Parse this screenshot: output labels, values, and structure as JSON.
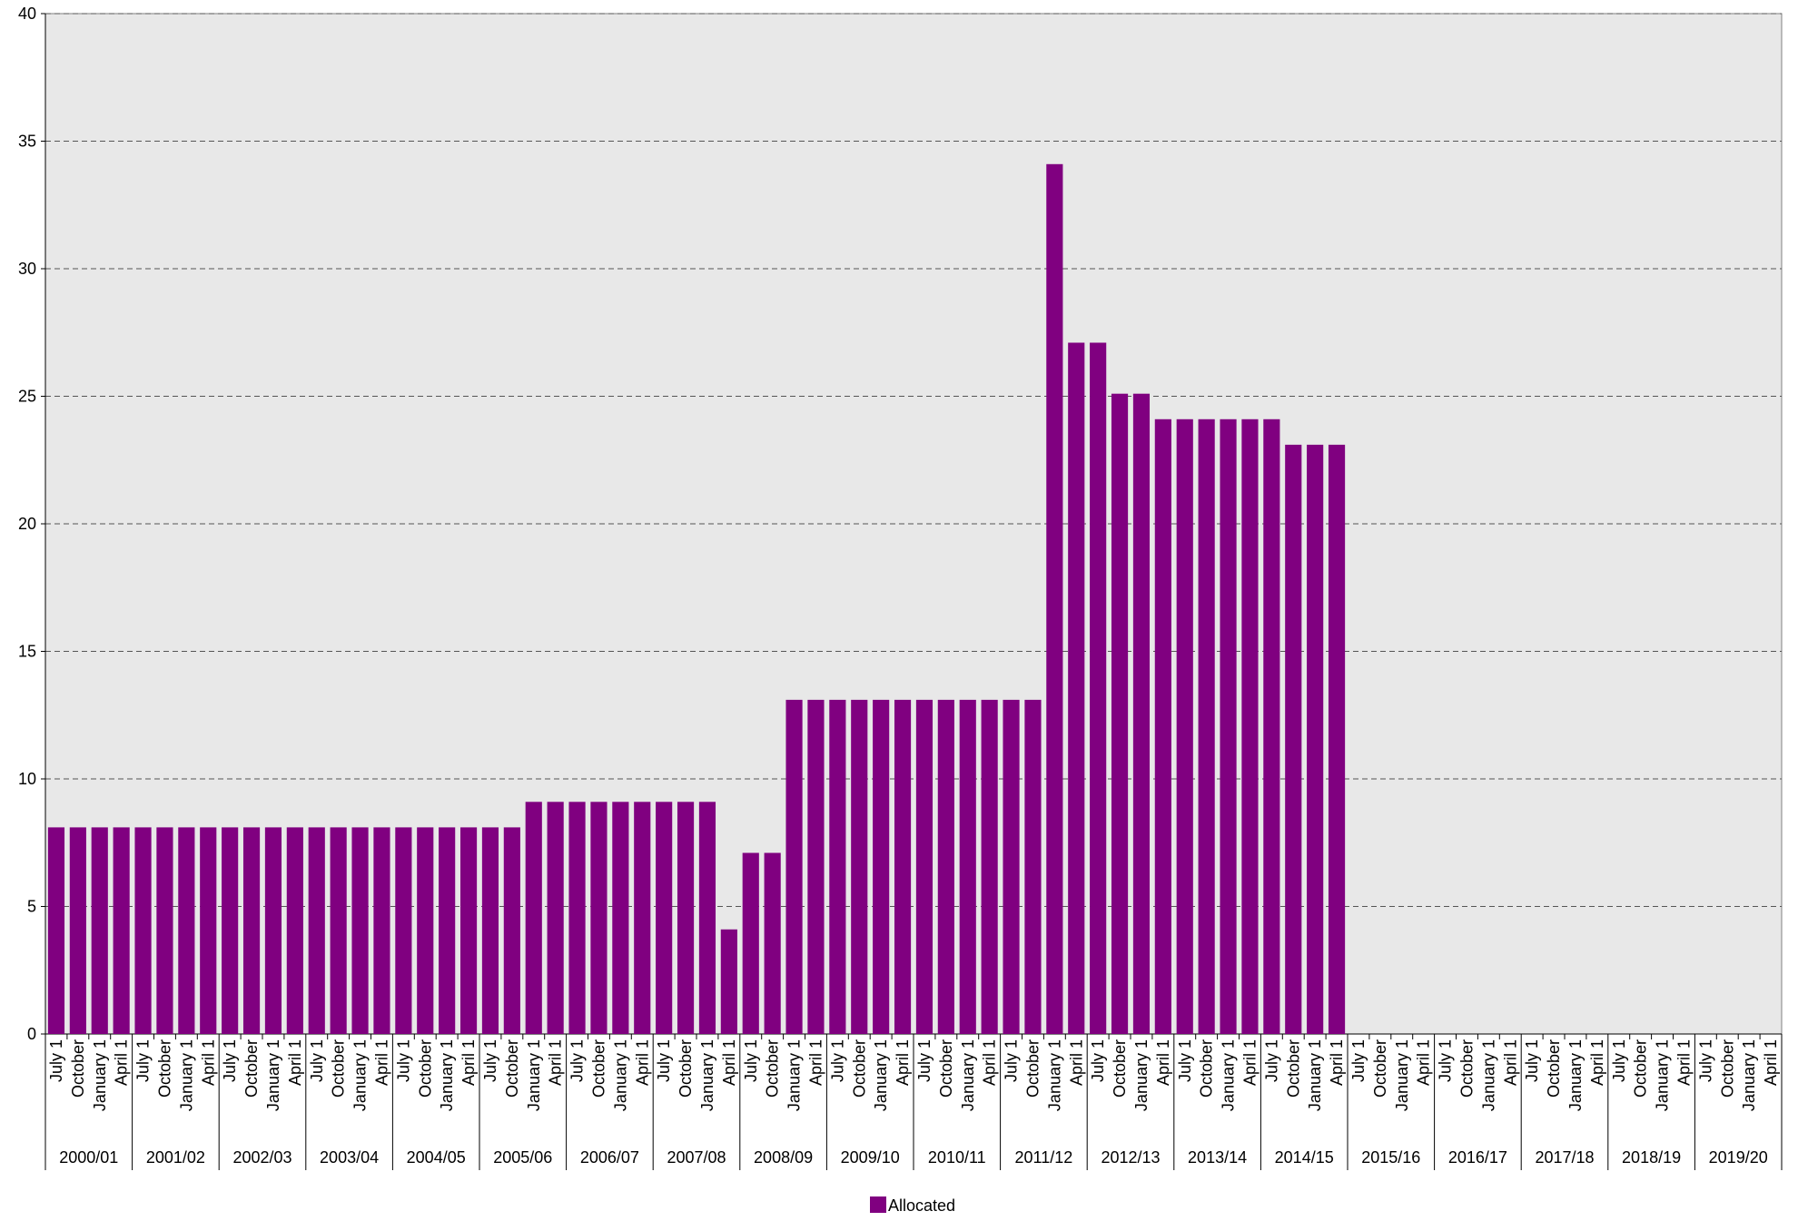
{
  "chart_data": {
    "type": "bar",
    "categories": [
      "July 1",
      "October",
      "January 1",
      "April 1",
      "July 1",
      "October",
      "January 1",
      "April 1",
      "July 1",
      "October",
      "January 1",
      "April 1",
      "July 1",
      "October",
      "January 1",
      "April 1",
      "July 1",
      "October",
      "January 1",
      "April 1",
      "July 1",
      "October",
      "January 1",
      "April 1",
      "July 1",
      "October",
      "January 1",
      "April 1",
      "July 1",
      "October",
      "January 1",
      "April 1",
      "July 1",
      "October",
      "January 1",
      "April 1",
      "July 1",
      "October",
      "January 1",
      "April 1",
      "July 1",
      "October",
      "January 1",
      "April 1",
      "July 1",
      "October",
      "January 1",
      "April 1",
      "July 1",
      "October",
      "January 1",
      "April 1",
      "July 1",
      "October",
      "January 1",
      "April 1",
      "July 1",
      "October",
      "January 1",
      "April 1",
      "July 1",
      "October",
      "January 1",
      "April 1",
      "July 1",
      "October",
      "January 1",
      "April 1",
      "July 1",
      "October",
      "January 1",
      "April 1",
      "July 1",
      "October",
      "January 1",
      "April 1",
      "July 1",
      "October",
      "January 1",
      "April 1"
    ],
    "groups": [
      "2000/01",
      "2001/02",
      "2002/03",
      "2003/04",
      "2004/05",
      "2005/06",
      "2006/07",
      "2007/08",
      "2008/09",
      "2009/10",
      "2010/11",
      "2011/12",
      "2012/13",
      "2013/14",
      "2014/15",
      "2015/16",
      "2016/17",
      "2017/18",
      "2018/19",
      "2019/20"
    ],
    "series": [
      {
        "name": "Allocated",
        "color": "#800080",
        "values": [
          8.1,
          8.1,
          8.1,
          8.1,
          8.1,
          8.1,
          8.1,
          8.1,
          8.1,
          8.1,
          8.1,
          8.1,
          8.1,
          8.1,
          8.1,
          8.1,
          8.1,
          8.1,
          8.1,
          8.1,
          8.1,
          8.1,
          9.1,
          9.1,
          9.1,
          9.1,
          9.1,
          9.1,
          9.1,
          9.1,
          9.1,
          4.1,
          7.1,
          7.1,
          13.1,
          13.1,
          13.1,
          13.1,
          13.1,
          13.1,
          13.1,
          13.1,
          13.1,
          13.1,
          13.1,
          13.1,
          34.1,
          27.1,
          27.1,
          25.1,
          25.1,
          24.1,
          24.1,
          24.1,
          24.1,
          24.1,
          24.1,
          23.1,
          23.1,
          23.1,
          null,
          null,
          null,
          null,
          null,
          null,
          null,
          null,
          null,
          null,
          null,
          null,
          null,
          null,
          null,
          null,
          null,
          null,
          null,
          null
        ]
      }
    ],
    "ylim": [
      0,
      40
    ],
    "yticks": [
      0,
      5,
      10,
      15,
      20,
      25,
      30,
      35,
      40
    ],
    "grid": true,
    "legend": "bottom"
  }
}
